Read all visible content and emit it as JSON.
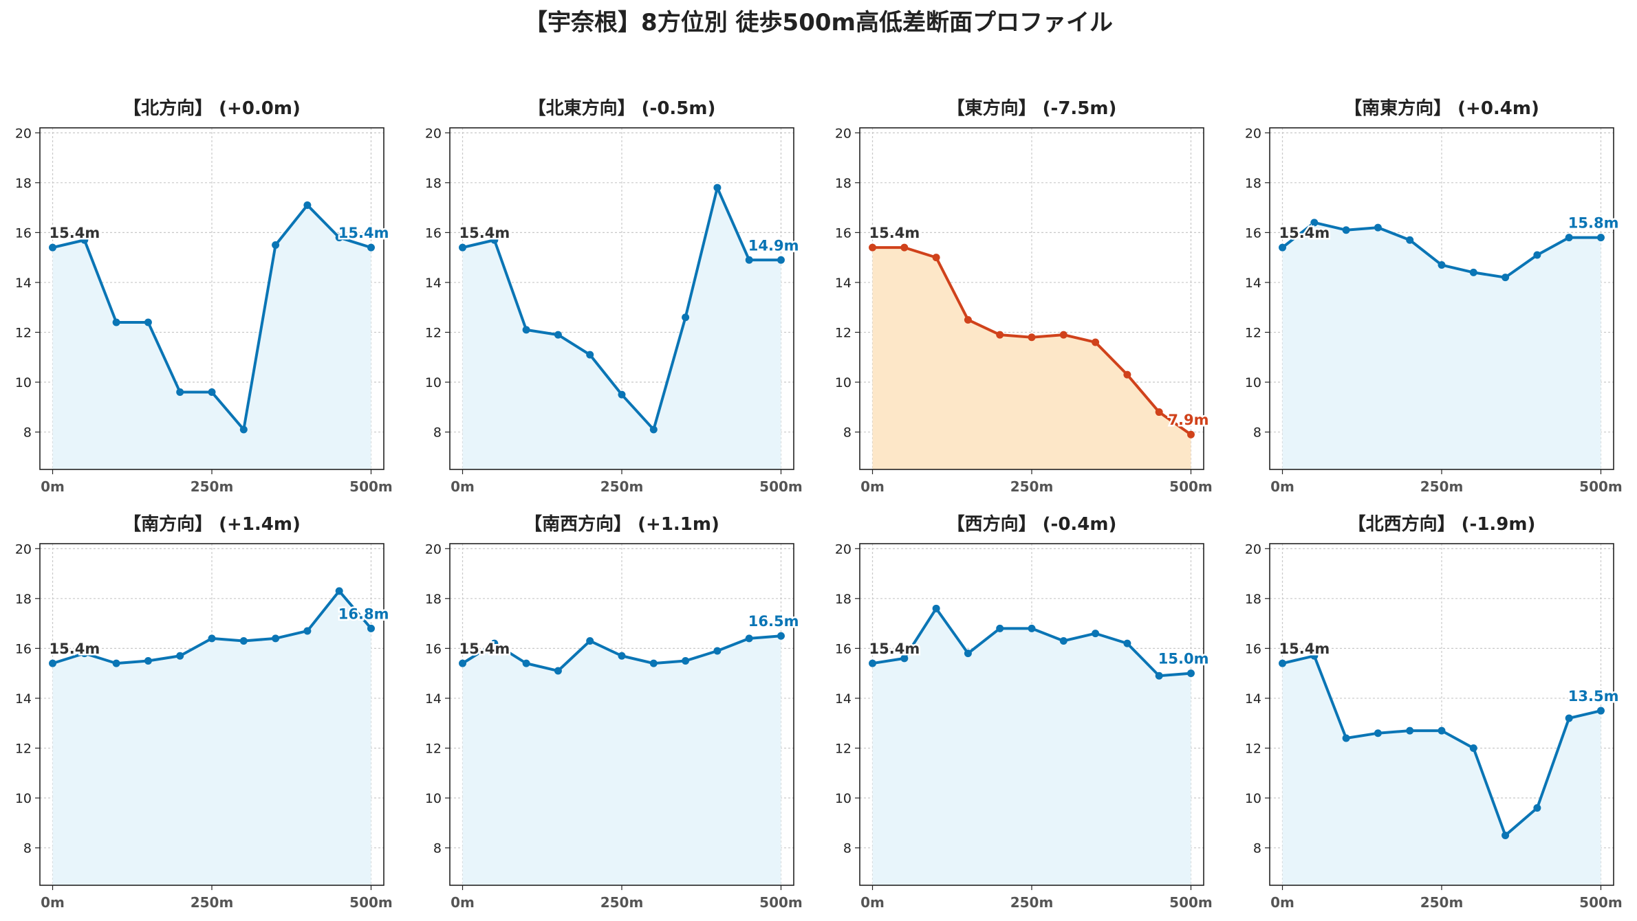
{
  "figure": {
    "title": "【宇奈根】8方位別 徒歩500m高低差断面プロファイル"
  },
  "colors": {
    "normal_line": "#0a75b5",
    "normal_fill": "#e8f5fb",
    "highlight_line": "#d0421b",
    "highlight_fill": "#fde7c8",
    "start_label": "#333333",
    "axis_text": "#555555",
    "grid": "#c8c8c8"
  },
  "chart_data": [
    {
      "type": "line",
      "title": "【北方向】 (+0.0m)",
      "x": [
        0,
        50,
        100,
        150,
        200,
        250,
        300,
        350,
        400,
        450,
        500
      ],
      "series": [
        {
          "values": [
            15.4,
            15.7,
            12.4,
            12.4,
            9.6,
            9.6,
            8.1,
            15.5,
            17.1,
            15.8,
            15.4
          ]
        }
      ],
      "start_label": "15.4m",
      "end_label": "15.4m",
      "highlight": false,
      "xticks": [
        "0m",
        "250m",
        "500m"
      ],
      "yticks": [
        "8",
        "10",
        "12",
        "14",
        "16",
        "18",
        "20"
      ],
      "xlim": [
        -20,
        520
      ],
      "ylim": [
        6.5,
        20.2
      ],
      "grid": true
    },
    {
      "type": "line",
      "title": "【北東方向】 (-0.5m)",
      "x": [
        0,
        50,
        100,
        150,
        200,
        250,
        300,
        350,
        400,
        450,
        500
      ],
      "series": [
        {
          "values": [
            15.4,
            15.7,
            12.1,
            11.9,
            11.1,
            9.5,
            8.1,
            12.6,
            17.8,
            14.9,
            14.9
          ]
        }
      ],
      "start_label": "15.4m",
      "end_label": "14.9m",
      "highlight": false,
      "xticks": [
        "0m",
        "250m",
        "500m"
      ],
      "yticks": [
        "8",
        "10",
        "12",
        "14",
        "16",
        "18",
        "20"
      ],
      "xlim": [
        -20,
        520
      ],
      "ylim": [
        6.5,
        20.2
      ],
      "grid": true
    },
    {
      "type": "line",
      "title": "【東方向】 (-7.5m)",
      "x": [
        0,
        50,
        100,
        150,
        200,
        250,
        300,
        350,
        400,
        450,
        500
      ],
      "series": [
        {
          "values": [
            15.4,
            15.4,
            15.0,
            12.5,
            11.9,
            11.8,
            11.9,
            11.6,
            10.3,
            8.8,
            7.9
          ]
        }
      ],
      "start_label": "15.4m",
      "end_label": "7.9m",
      "highlight": true,
      "xticks": [
        "0m",
        "250m",
        "500m"
      ],
      "yticks": [
        "8",
        "10",
        "12",
        "14",
        "16",
        "18",
        "20"
      ],
      "xlim": [
        -20,
        520
      ],
      "ylim": [
        6.5,
        20.2
      ],
      "grid": true
    },
    {
      "type": "line",
      "title": "【南東方向】 (+0.4m)",
      "x": [
        0,
        50,
        100,
        150,
        200,
        250,
        300,
        350,
        400,
        450,
        500
      ],
      "series": [
        {
          "values": [
            15.4,
            16.4,
            16.1,
            16.2,
            15.7,
            14.7,
            14.4,
            14.2,
            15.1,
            15.8,
            15.8
          ]
        }
      ],
      "start_label": "15.4m",
      "end_label": "15.8m",
      "highlight": false,
      "xticks": [
        "0m",
        "250m",
        "500m"
      ],
      "yticks": [
        "8",
        "10",
        "12",
        "14",
        "16",
        "18",
        "20"
      ],
      "xlim": [
        -20,
        520
      ],
      "ylim": [
        6.5,
        20.2
      ],
      "grid": true
    },
    {
      "type": "line",
      "title": "【南方向】 (+1.4m)",
      "x": [
        0,
        50,
        100,
        150,
        200,
        250,
        300,
        350,
        400,
        450,
        500
      ],
      "series": [
        {
          "values": [
            15.4,
            15.8,
            15.4,
            15.5,
            15.7,
            16.4,
            16.3,
            16.4,
            16.7,
            18.3,
            16.8
          ]
        }
      ],
      "start_label": "15.4m",
      "end_label": "16.8m",
      "highlight": false,
      "xticks": [
        "0m",
        "250m",
        "500m"
      ],
      "yticks": [
        "8",
        "10",
        "12",
        "14",
        "16",
        "18",
        "20"
      ],
      "xlim": [
        -20,
        520
      ],
      "ylim": [
        6.5,
        20.2
      ],
      "grid": true
    },
    {
      "type": "line",
      "title": "【南西方向】 (+1.1m)",
      "x": [
        0,
        50,
        100,
        150,
        200,
        250,
        300,
        350,
        400,
        450,
        500
      ],
      "series": [
        {
          "values": [
            15.4,
            16.2,
            15.4,
            15.1,
            16.3,
            15.7,
            15.4,
            15.5,
            15.9,
            16.4,
            16.5
          ]
        }
      ],
      "start_label": "15.4m",
      "end_label": "16.5m",
      "highlight": false,
      "xticks": [
        "0m",
        "250m",
        "500m"
      ],
      "yticks": [
        "8",
        "10",
        "12",
        "14",
        "16",
        "18",
        "20"
      ],
      "xlim": [
        -20,
        520
      ],
      "ylim": [
        6.5,
        20.2
      ],
      "grid": true
    },
    {
      "type": "line",
      "title": "【西方向】 (-0.4m)",
      "x": [
        0,
        50,
        100,
        150,
        200,
        250,
        300,
        350,
        400,
        450,
        500
      ],
      "series": [
        {
          "values": [
            15.4,
            15.6,
            17.6,
            15.8,
            16.8,
            16.8,
            16.3,
            16.6,
            16.2,
            14.9,
            15.0
          ]
        }
      ],
      "start_label": "15.4m",
      "end_label": "15.0m",
      "highlight": false,
      "xticks": [
        "0m",
        "250m",
        "500m"
      ],
      "yticks": [
        "8",
        "10",
        "12",
        "14",
        "16",
        "18",
        "20"
      ],
      "xlim": [
        -20,
        520
      ],
      "ylim": [
        6.5,
        20.2
      ],
      "grid": true
    },
    {
      "type": "line",
      "title": "【北西方向】 (-1.9m)",
      "x": [
        0,
        50,
        100,
        150,
        200,
        250,
        300,
        350,
        400,
        450,
        500
      ],
      "series": [
        {
          "values": [
            15.4,
            15.7,
            12.4,
            12.6,
            12.7,
            12.7,
            12.0,
            8.5,
            9.6,
            13.2,
            13.5
          ]
        }
      ],
      "start_label": "15.4m",
      "end_label": "13.5m",
      "highlight": false,
      "xticks": [
        "0m",
        "250m",
        "500m"
      ],
      "yticks": [
        "8",
        "10",
        "12",
        "14",
        "16",
        "18",
        "20"
      ],
      "xlim": [
        -20,
        520
      ],
      "ylim": [
        6.5,
        20.2
      ],
      "grid": true
    }
  ]
}
